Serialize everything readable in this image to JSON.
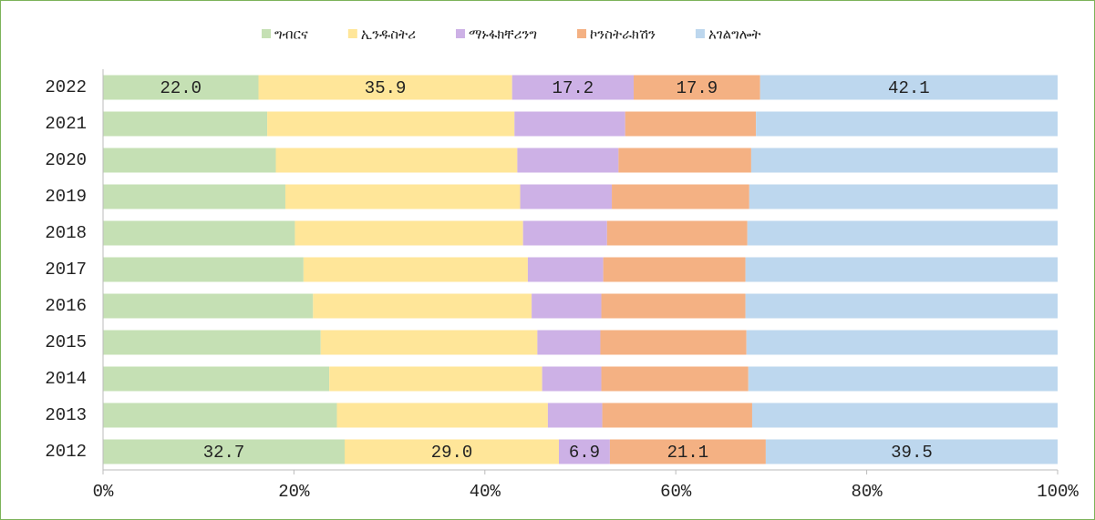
{
  "chart_data": {
    "type": "bar",
    "orientation": "horizontal",
    "stacking": "percent",
    "categories": [
      "2022",
      "2021",
      "2020",
      "2019",
      "2018",
      "2017",
      "2016",
      "2015",
      "2014",
      "2013",
      "2012"
    ],
    "series": [
      {
        "name": "ግብርና",
        "color": "#c5e0b4",
        "values": [
          22.0,
          17.2,
          18.1,
          19.1,
          20.1,
          21.0,
          22.0,
          22.8,
          23.7,
          24.5,
          32.7
        ],
        "value_labels": [
          "22.0",
          null,
          null,
          null,
          null,
          null,
          null,
          null,
          null,
          null,
          "32.7"
        ]
      },
      {
        "name": "ኢንዱስትሪ",
        "color": "#ffe699",
        "values": [
          35.9,
          25.9,
          25.3,
          24.6,
          23.9,
          23.5,
          22.9,
          22.7,
          22.3,
          22.1,
          29.0
        ],
        "value_labels": [
          "35.9",
          null,
          null,
          null,
          null,
          null,
          null,
          null,
          null,
          null,
          "29.0"
        ]
      },
      {
        "name": "ማኑፋክቸሪንግ",
        "color": "#cdb1e6",
        "values": [
          17.2,
          11.6,
          10.6,
          9.6,
          8.8,
          7.9,
          7.3,
          6.6,
          6.2,
          5.7,
          6.9
        ],
        "value_labels": [
          "17.2",
          null,
          null,
          null,
          null,
          null,
          null,
          null,
          null,
          null,
          "6.9"
        ]
      },
      {
        "name": "ኮንስትራክሽን",
        "color": "#f4b183",
        "values": [
          17.9,
          13.7,
          13.9,
          14.4,
          14.7,
          14.9,
          15.1,
          15.3,
          15.4,
          15.7,
          21.1
        ],
        "value_labels": [
          "17.9",
          null,
          null,
          null,
          null,
          null,
          null,
          null,
          null,
          null,
          "21.1"
        ]
      },
      {
        "name": "አገልግሎት",
        "color": "#bdd7ee",
        "values": [
          42.1,
          31.6,
          32.1,
          32.3,
          32.5,
          32.7,
          32.7,
          32.6,
          32.4,
          32.0,
          39.5
        ],
        "value_labels": [
          "42.1",
          null,
          null,
          null,
          null,
          null,
          null,
          null,
          null,
          null,
          "39.5"
        ]
      }
    ],
    "xlim": [
      0,
      100
    ],
    "xticks": [
      {
        "value": 0,
        "label": "0%"
      },
      {
        "value": 20,
        "label": "20%"
      },
      {
        "value": 40,
        "label": "40%"
      },
      {
        "value": 60,
        "label": "60%"
      },
      {
        "value": 80,
        "label": "80%"
      },
      {
        "value": 100,
        "label": "100%"
      }
    ],
    "legend": "top"
  }
}
